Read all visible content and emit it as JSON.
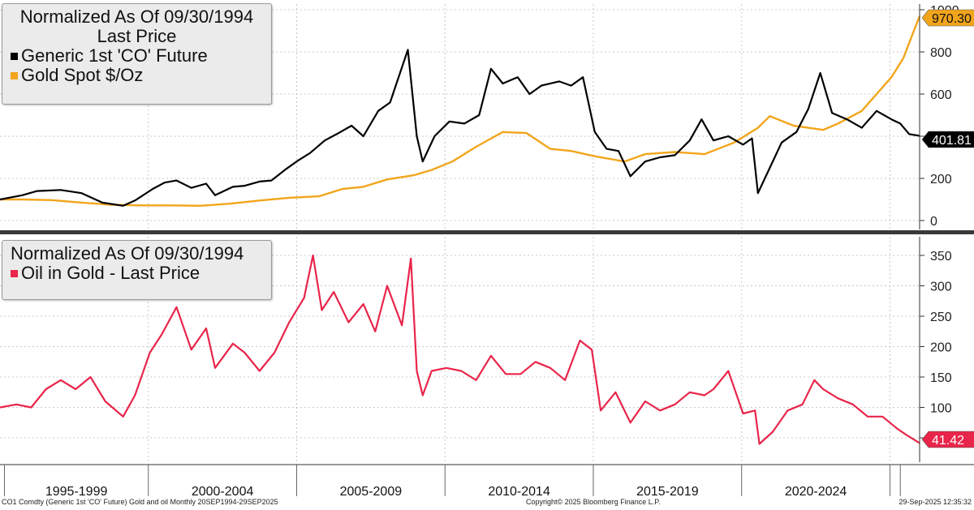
{
  "colors": {
    "oil": "#000000",
    "gold": "#f2a51c",
    "ratio": "#e8254a",
    "grid": "#c8c8c8",
    "divider": "#3a3a3a"
  },
  "top_legend": {
    "line1": "Normalized As Of 09/30/1994",
    "line2": "Last Price",
    "series": [
      "Generic 1st 'CO' Future",
      "Gold Spot $/Oz"
    ]
  },
  "bottom_legend": {
    "line1": "Normalized As Of 09/30/1994",
    "series": [
      "Oil in Gold - Last Price"
    ]
  },
  "footer": {
    "left": "CO1 Comdty (Generic 1st 'CO' Future) Gold and oil  Monthly 20SEP1994-29SEP2025",
    "center": "Copyright© 2025 Bloomberg Finance L.P.",
    "right": "29-Sep-2025 12:35:32"
  },
  "chart_data": [
    {
      "type": "line",
      "x_range": [
        1994.75,
        2025.75
      ],
      "ylim": [
        0,
        1000
      ],
      "yticks": [
        0,
        200,
        400,
        600,
        800,
        1000
      ],
      "x_period_labels": [
        "1995-1999",
        "2000-2004",
        "2005-2009",
        "2010-2014",
        "2015-2019",
        "2020-2024"
      ],
      "last_value_labels": [
        "970.30",
        "401.81"
      ],
      "grid": true,
      "series": [
        {
          "name": "Generic 1st 'CO' Future",
          "x": [
            1994.75,
            1995.5,
            1996.0,
            1996.8,
            1997.5,
            1998.2,
            1998.9,
            1999.3,
            1999.9,
            2000.3,
            2000.7,
            2001.2,
            2001.7,
            2002.0,
            2002.6,
            2003.0,
            2003.5,
            2003.9,
            2004.4,
            2004.8,
            2005.2,
            2005.7,
            2006.1,
            2006.6,
            2007.0,
            2007.5,
            2007.9,
            2008.5,
            2008.8,
            2009.0,
            2009.4,
            2009.9,
            2010.4,
            2010.9,
            2011.3,
            2011.7,
            2012.2,
            2012.6,
            2013.0,
            2013.6,
            2014.0,
            2014.4,
            2014.8,
            2015.2,
            2015.6,
            2016.0,
            2016.5,
            2017.0,
            2017.5,
            2018.0,
            2018.4,
            2018.8,
            2019.3,
            2019.8,
            2020.1,
            2020.3,
            2020.7,
            2021.1,
            2021.6,
            2022.0,
            2022.4,
            2022.8,
            2023.3,
            2023.8,
            2024.3,
            2024.8,
            2025.1,
            2025.4,
            2025.75
          ],
          "values": [
            100,
            120,
            140,
            145,
            130,
            85,
            70,
            95,
            150,
            180,
            190,
            155,
            175,
            120,
            160,
            165,
            185,
            190,
            245,
            285,
            320,
            380,
            410,
            450,
            400,
            520,
            560,
            810,
            400,
            280,
            400,
            470,
            460,
            500,
            720,
            650,
            680,
            600,
            640,
            660,
            640,
            680,
            420,
            340,
            330,
            210,
            280,
            300,
            310,
            380,
            480,
            380,
            400,
            360,
            390,
            130,
            250,
            370,
            420,
            530,
            700,
            510,
            480,
            440,
            520,
            480,
            460,
            410,
            402
          ]
        },
        {
          "name": "Gold Spot $/Oz",
          "x": [
            1994.75,
            1995.5,
            1996.5,
            1997.5,
            1998.5,
            1999.5,
            2000.5,
            2001.5,
            2002.5,
            2003.5,
            2004.5,
            2005.5,
            2006.3,
            2007.0,
            2007.8,
            2008.7,
            2009.3,
            2010.0,
            2010.8,
            2011.7,
            2012.5,
            2013.3,
            2014.0,
            2014.8,
            2015.8,
            2016.5,
            2017.5,
            2018.5,
            2019.5,
            2020.3,
            2020.7,
            2021.5,
            2022.5,
            2023.0,
            2023.8,
            2024.3,
            2024.8,
            2025.2,
            2025.5,
            2025.75
          ],
          "values": [
            100,
            100,
            97,
            85,
            75,
            72,
            72,
            70,
            80,
            95,
            108,
            115,
            150,
            160,
            195,
            215,
            240,
            280,
            350,
            420,
            415,
            340,
            330,
            305,
            280,
            315,
            325,
            315,
            370,
            440,
            495,
            450,
            430,
            460,
            520,
            600,
            680,
            770,
            880,
            970
          ]
        }
      ]
    },
    {
      "type": "line",
      "x_range": [
        1994.75,
        2025.75
      ],
      "ylim": [
        35,
        360
      ],
      "yticks": [
        50,
        100,
        150,
        200,
        250,
        300,
        350
      ],
      "last_value_labels": [
        "41.42"
      ],
      "grid": true,
      "series": [
        {
          "name": "Oil in Gold - Last Price",
          "x": [
            1994.75,
            1995.3,
            1995.8,
            1996.3,
            1996.8,
            1997.3,
            1997.8,
            1998.3,
            1998.9,
            1999.3,
            1999.8,
            2000.2,
            2000.7,
            2001.2,
            2001.7,
            2002.0,
            2002.6,
            2003.0,
            2003.5,
            2004.0,
            2004.5,
            2005.0,
            2005.3,
            2005.6,
            2006.0,
            2006.5,
            2007.0,
            2007.4,
            2007.8,
            2008.3,
            2008.6,
            2008.8,
            2009.0,
            2009.3,
            2009.8,
            2010.3,
            2010.8,
            2011.3,
            2011.8,
            2012.3,
            2012.8,
            2013.3,
            2013.8,
            2014.3,
            2014.7,
            2015.0,
            2015.5,
            2016.0,
            2016.5,
            2017.0,
            2017.5,
            2018.0,
            2018.5,
            2018.8,
            2019.3,
            2019.8,
            2020.2,
            2020.35,
            2020.8,
            2021.3,
            2021.8,
            2022.2,
            2022.5,
            2023.0,
            2023.5,
            2024.0,
            2024.5,
            2025.0,
            2025.3,
            2025.75
          ],
          "values": [
            100,
            105,
            100,
            130,
            145,
            130,
            150,
            110,
            85,
            120,
            190,
            220,
            265,
            195,
            230,
            165,
            205,
            190,
            160,
            190,
            240,
            280,
            350,
            260,
            290,
            240,
            270,
            225,
            300,
            235,
            345,
            160,
            120,
            160,
            165,
            160,
            145,
            185,
            155,
            155,
            175,
            165,
            145,
            210,
            195,
            95,
            125,
            75,
            110,
            95,
            105,
            125,
            120,
            130,
            160,
            90,
            95,
            40,
            60,
            95,
            105,
            145,
            130,
            115,
            105,
            85,
            85,
            65,
            55,
            41.42
          ]
        }
      ]
    }
  ]
}
